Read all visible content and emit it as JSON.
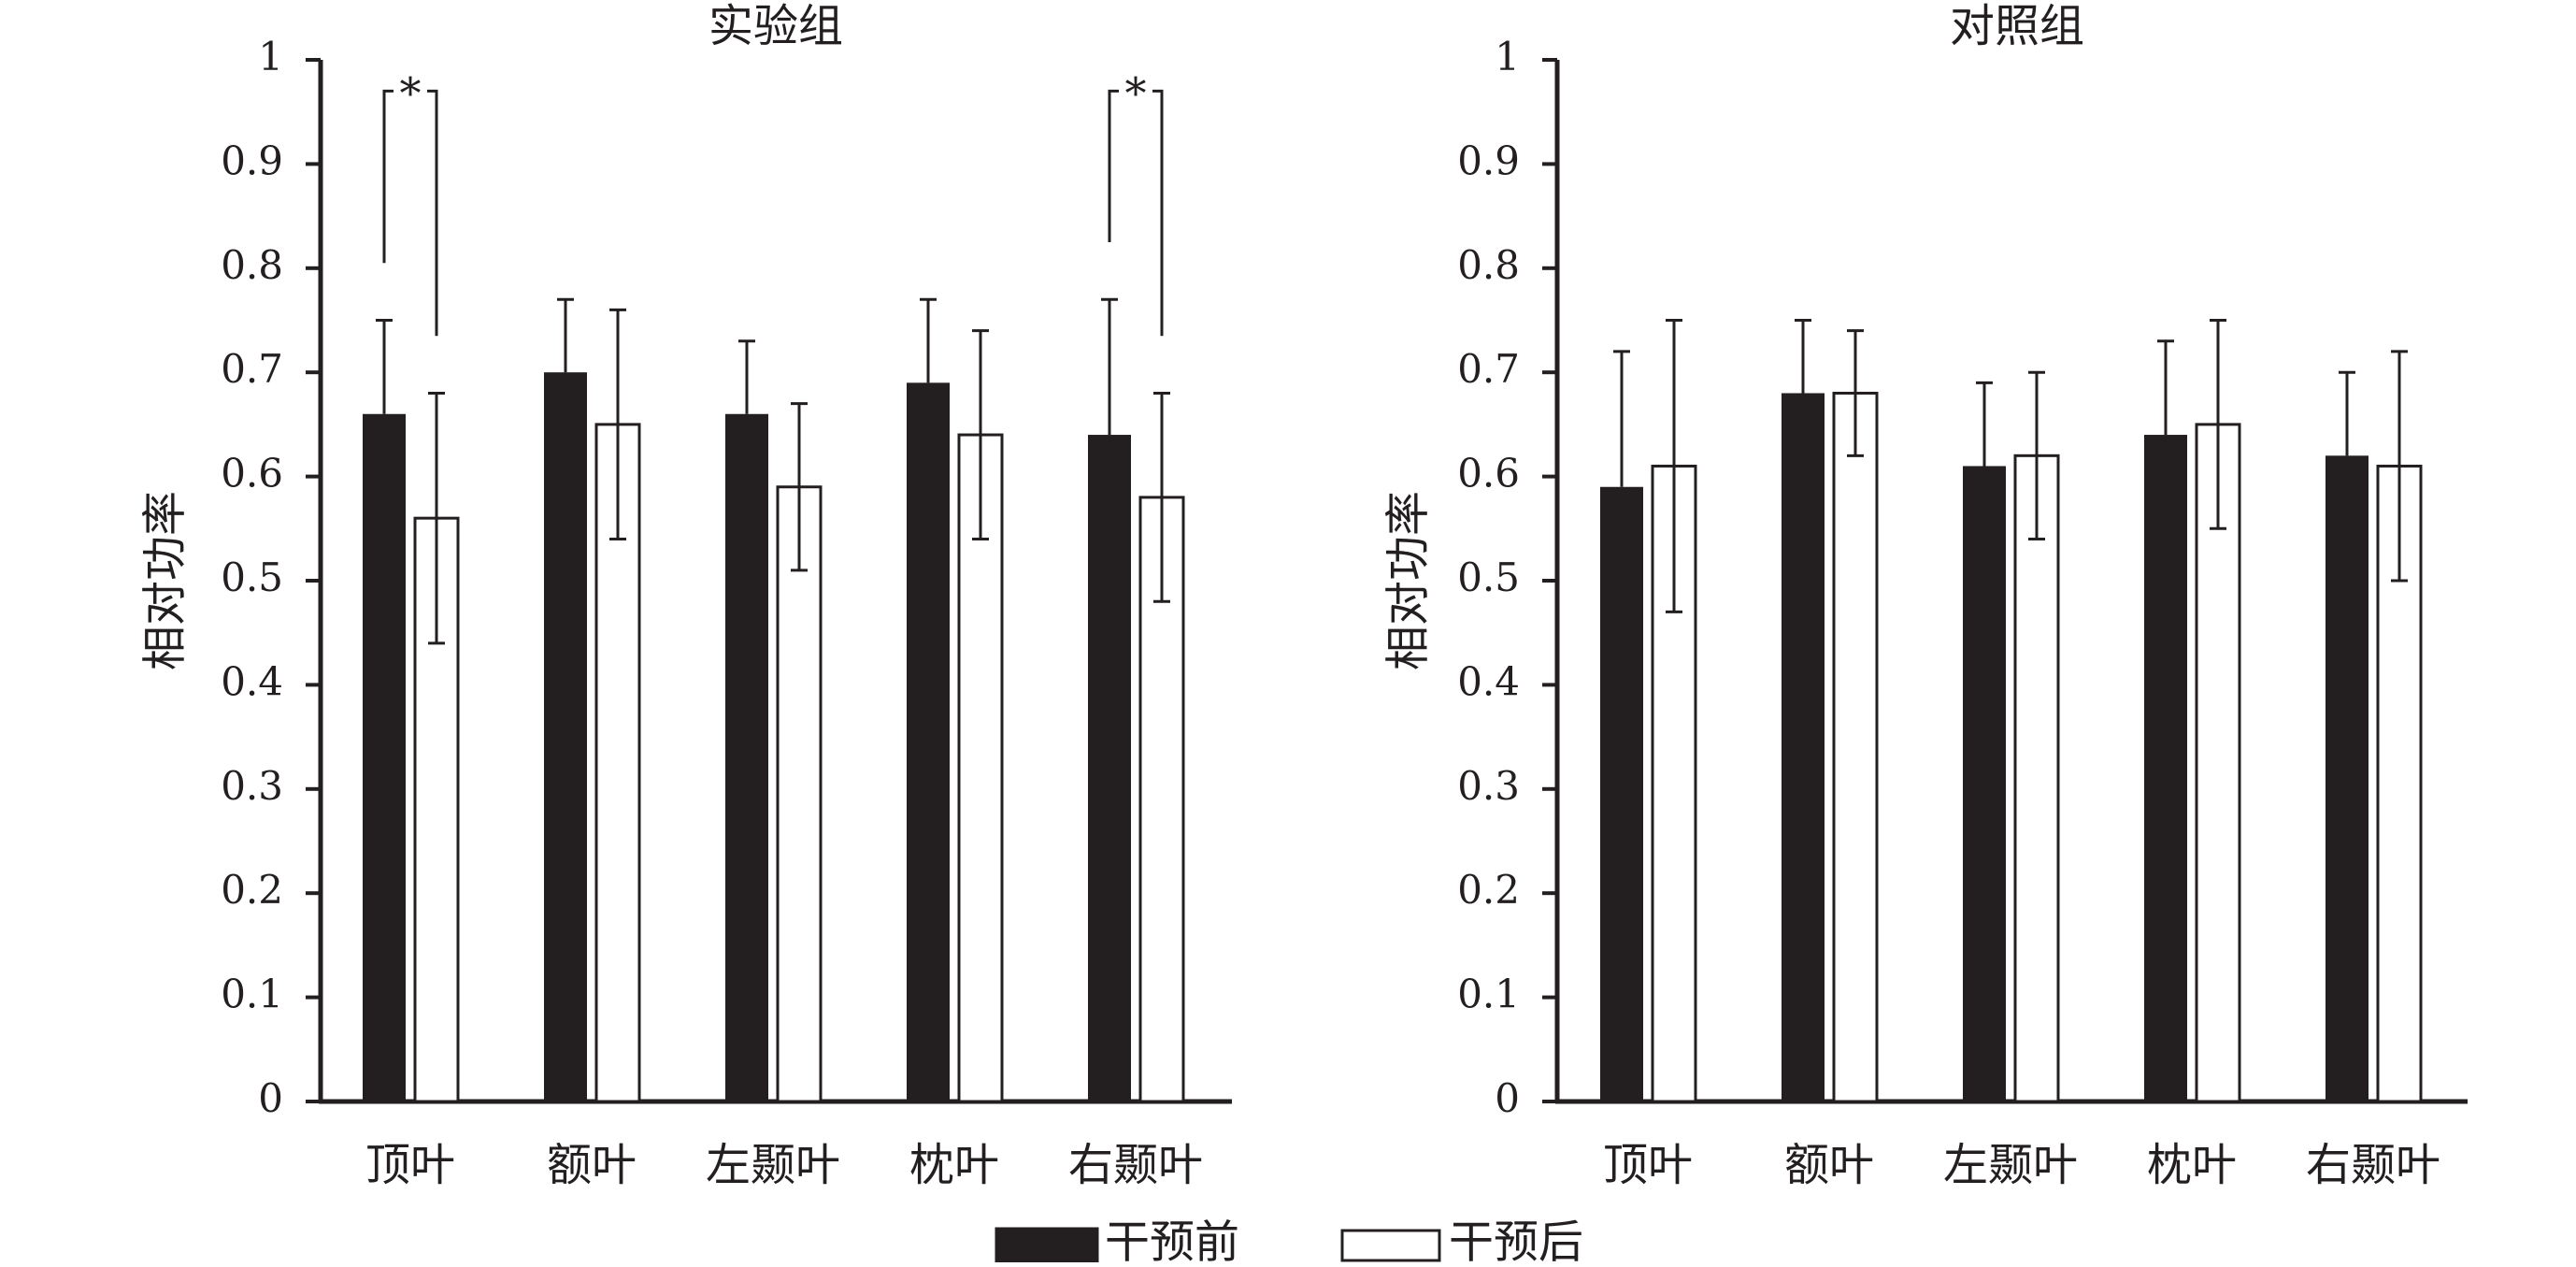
{
  "colors": {
    "ink": "#231f20",
    "before": "#231f20",
    "after": "#ffffff"
  },
  "legend": {
    "before": "干预前",
    "after": "干预后"
  },
  "chart_data": [
    {
      "type": "bar",
      "title": "实验组",
      "ylabel": "相对功率",
      "xlabel": "",
      "ylim": [
        0,
        1
      ],
      "yticks": [
        "0",
        "0.1",
        "0.2",
        "0.3",
        "0.4",
        "0.5",
        "0.6",
        "0.7",
        "0.8",
        "0.9",
        "1"
      ],
      "categories": [
        "顶叶",
        "额叶",
        "左颞叶",
        "枕叶",
        "右颞叶"
      ],
      "series": [
        {
          "name": "干预前",
          "values": [
            0.66,
            0.7,
            0.66,
            0.69,
            0.64
          ],
          "error": [
            0.09,
            0.07,
            0.07,
            0.08,
            0.13
          ]
        },
        {
          "name": "干预后",
          "values": [
            0.56,
            0.65,
            0.59,
            0.64,
            0.58
          ],
          "error": [
            0.12,
            0.11,
            0.08,
            0.1,
            0.1
          ]
        }
      ],
      "significance": [
        {
          "category": "顶叶",
          "label": "*"
        },
        {
          "category": "右颞叶",
          "label": "*"
        }
      ]
    },
    {
      "type": "bar",
      "title": "对照组",
      "ylabel": "相对功率",
      "xlabel": "",
      "ylim": [
        0,
        1
      ],
      "yticks": [
        "0",
        "0.1",
        "0.2",
        "0.3",
        "0.4",
        "0.5",
        "0.6",
        "0.7",
        "0.8",
        "0.9",
        "1"
      ],
      "categories": [
        "顶叶",
        "额叶",
        "左颞叶",
        "枕叶",
        "右颞叶"
      ],
      "series": [
        {
          "name": "干预前",
          "values": [
            0.59,
            0.68,
            0.61,
            0.64,
            0.62
          ],
          "error": [
            0.13,
            0.07,
            0.08,
            0.09,
            0.08
          ]
        },
        {
          "name": "干预后",
          "values": [
            0.61,
            0.68,
            0.62,
            0.65,
            0.61
          ],
          "error": [
            0.14,
            0.06,
            0.08,
            0.1,
            0.11
          ]
        }
      ],
      "significance": []
    }
  ]
}
